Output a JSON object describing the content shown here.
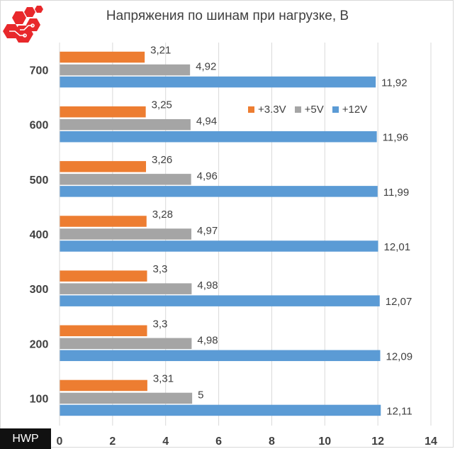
{
  "brand": {
    "watermark": "HWP"
  },
  "chart_data": {
    "type": "bar",
    "orientation": "horizontal",
    "title": "Напряжения по шинам при нагрузке, В",
    "categories": [
      "700",
      "600",
      "500",
      "400",
      "300",
      "200",
      "100"
    ],
    "series": [
      {
        "name": "+3.3V",
        "color": "#ED7D31",
        "values": [
          3.21,
          3.25,
          3.26,
          3.28,
          3.3,
          3.3,
          3.31
        ],
        "labels": [
          "3,21",
          "3,25",
          "3,26",
          "3,28",
          "3,3",
          "3,3",
          "3,31"
        ]
      },
      {
        "name": "+5V",
        "color": "#A5A5A5",
        "values": [
          4.92,
          4.94,
          4.96,
          4.97,
          4.98,
          4.98,
          5
        ],
        "labels": [
          "4,92",
          "4,94",
          "4,96",
          "4,97",
          "4,98",
          "4,98",
          "5"
        ]
      },
      {
        "name": "+12V",
        "color": "#5B9BD5",
        "values": [
          11.92,
          11.96,
          11.99,
          12.01,
          12.07,
          12.09,
          12.11
        ],
        "labels": [
          "11,92",
          "11,96",
          "11,99",
          "12,01",
          "12,07",
          "12,09",
          "12,11"
        ]
      }
    ],
    "xlim": [
      0,
      14
    ],
    "xticks": [
      "0",
      "2",
      "4",
      "6",
      "8",
      "10",
      "12",
      "14"
    ],
    "grid": true,
    "legend": "top-right"
  }
}
